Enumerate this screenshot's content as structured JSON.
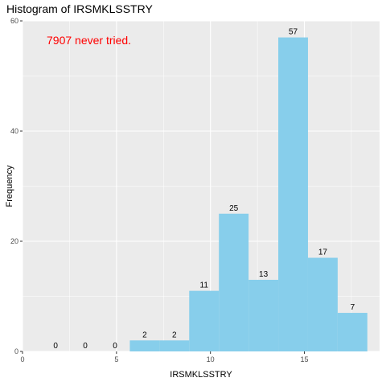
{
  "chart_data": {
    "type": "bar",
    "title": "Histogram of IRSMKLSSTRY",
    "xlabel": "IRSMKLSSTRY",
    "ylabel": "Frequency",
    "annotation": "7907 never tried.",
    "annotation_color": "#ff0000",
    "bar_color": "#87ceeb",
    "panel_color": "#ebebeb",
    "grid_color": "#ffffff",
    "grid": true,
    "xlim": [
      0,
      19
    ],
    "ylim": [
      0,
      60
    ],
    "x_ticks": [
      0,
      5,
      10,
      15
    ],
    "y_ticks": [
      0,
      20,
      40,
      60
    ],
    "bins": [
      {
        "start": 0.97,
        "end": 2.55,
        "count": 0
      },
      {
        "start": 2.55,
        "end": 4.13,
        "count": 0
      },
      {
        "start": 4.13,
        "end": 5.71,
        "count": 0
      },
      {
        "start": 5.71,
        "end": 7.29,
        "count": 2
      },
      {
        "start": 7.29,
        "end": 8.87,
        "count": 2
      },
      {
        "start": 8.87,
        "end": 10.45,
        "count": 11
      },
      {
        "start": 10.45,
        "end": 12.03,
        "count": 25
      },
      {
        "start": 12.03,
        "end": 13.61,
        "count": 13
      },
      {
        "start": 13.61,
        "end": 15.19,
        "count": 57
      },
      {
        "start": 15.19,
        "end": 16.77,
        "count": 17
      },
      {
        "start": 16.77,
        "end": 18.35,
        "count": 7
      }
    ]
  }
}
